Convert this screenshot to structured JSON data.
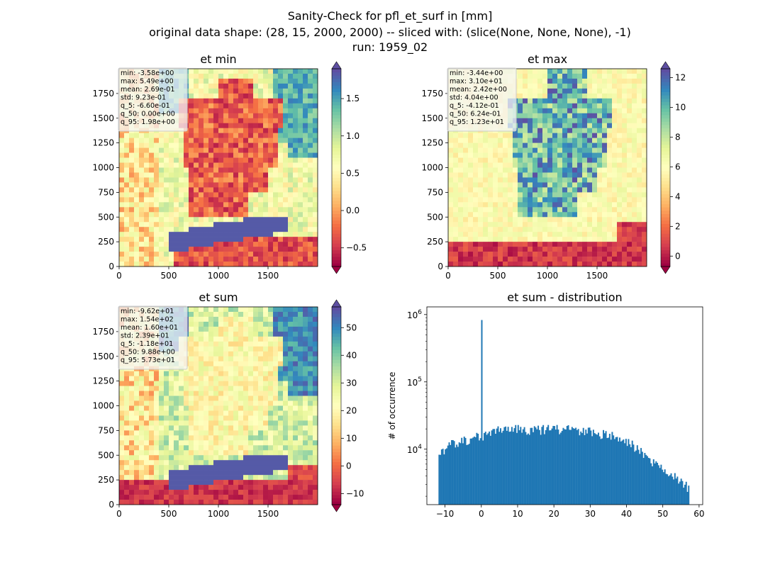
{
  "figure": {
    "suptitle_lines": [
      "Sanity-Check for pfl_et_surf in [mm]",
      "original data shape: (28, 15, 2000, 2000) -- sliced with: (slice(None, None, None), -1)",
      "run: 1959_02"
    ]
  },
  "colors": {
    "histogram_bar": "#1f77b4",
    "colormap": "Spectral",
    "stats_box_background": "#f5f5f5",
    "stats_box_border": "#cccccc"
  },
  "chart_data": [
    {
      "type": "heatmap",
      "title": "et min",
      "colormap": "Spectral",
      "x_ticks": [
        "0",
        "500",
        "1000",
        "1500"
      ],
      "y_ticks": [
        "0",
        "250",
        "500",
        "750",
        "1000",
        "1250",
        "1500",
        "1750"
      ],
      "xlim": [
        0,
        2000
      ],
      "ylim": [
        0,
        2000
      ],
      "colorbar": {
        "ticks": [
          "−0.5",
          "0.0",
          "0.5",
          "1.0",
          "1.5"
        ],
        "range": [
          -0.75,
          1.9
        ],
        "extend": "both"
      },
      "stats": [
        "min: -3.58e+00",
        "max: 5.49e+00",
        "mean: 2.69e-01",
        "std: 9.23e-01",
        "q_5: -6.60e-01",
        "q_50: 0.00e+00",
        "q_95: 1.98e+00"
      ]
    },
    {
      "type": "heatmap",
      "title": "et max",
      "colormap": "Spectral",
      "x_ticks": [
        "0",
        "500",
        "1000",
        "1500"
      ],
      "y_ticks": [
        "0",
        "250",
        "500",
        "750",
        "1000",
        "1250",
        "1500",
        "1750"
      ],
      "xlim": [
        0,
        2000
      ],
      "ylim": [
        0,
        2000
      ],
      "colorbar": {
        "ticks": [
          "0",
          "2",
          "4",
          "6",
          "8",
          "10",
          "12"
        ],
        "range": [
          -0.7,
          12.6
        ],
        "extend": "both"
      },
      "stats": [
        "min: -3.44e+00",
        "max: 3.10e+01",
        "mean: 2.42e+00",
        "std: 4.04e+00",
        "q_5: -4.12e-01",
        "q_50: 6.24e-01",
        "q_95: 1.23e+01"
      ]
    },
    {
      "type": "heatmap",
      "title": "et sum",
      "colormap": "Spectral",
      "x_ticks": [
        "0",
        "500",
        "1000",
        "1500"
      ],
      "y_ticks": [
        "0",
        "250",
        "500",
        "750",
        "1000",
        "1250",
        "1500",
        "1750"
      ],
      "xlim": [
        0,
        2000
      ],
      "ylim": [
        0,
        2000
      ],
      "colorbar": {
        "ticks": [
          "−10",
          "0",
          "10",
          "20",
          "30",
          "40",
          "50"
        ],
        "range": [
          -14,
          57.5
        ],
        "extend": "both"
      },
      "stats": [
        "min: -9.62e+01",
        "max: 1.54e+02",
        "mean: 1.60e+01",
        "std: 2.39e+01",
        "q_5: -1.18e+01",
        "q_50: 9.88e+00",
        "q_95: 5.73e+01"
      ]
    },
    {
      "type": "bar",
      "title": "et sum - distribution",
      "ylabel": "# of occurrence",
      "y_scale": "log",
      "x_ticks": [
        "−10",
        "0",
        "10",
        "20",
        "30",
        "40",
        "50",
        "60"
      ],
      "y_tick_labels": {
        "base": "10",
        "exponents": [
          "4",
          "5",
          "6"
        ]
      },
      "xlim": [
        -15,
        61
      ],
      "ylim": [
        1500,
        1300000
      ],
      "x_range": [
        -11.8,
        57.3
      ],
      "bin_count": 200,
      "peak": {
        "x": 0,
        "count": 830000
      },
      "envelope": {
        "x": [
          -11.8,
          -10,
          -8,
          -5,
          -2,
          0,
          2,
          5,
          10,
          15,
          20,
          25,
          30,
          35,
          38,
          40,
          42,
          44,
          46,
          48,
          50,
          52,
          54,
          56,
          57.3
        ],
        "counts": [
          8000,
          9500,
          12000,
          13500,
          15000,
          15500,
          17000,
          20000,
          20000,
          19000,
          20000,
          19500,
          18000,
          16000,
          14500,
          13000,
          11000,
          9000,
          7500,
          6000,
          5000,
          4500,
          3800,
          3000,
          2500
        ]
      }
    }
  ]
}
